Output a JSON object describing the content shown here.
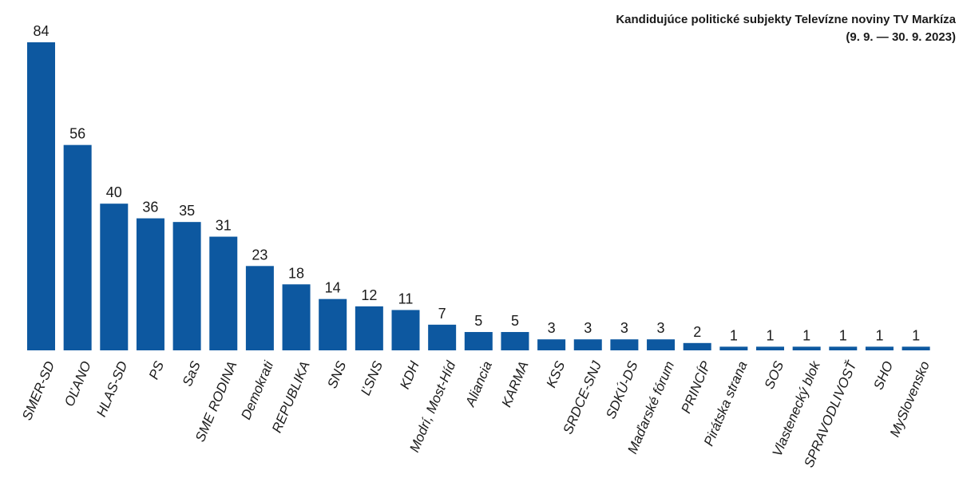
{
  "chart_data": {
    "type": "bar",
    "title": "Kandidujúce politické subjekty Televízne noviny TV Markíza",
    "subtitle": "(9. 9. — 30. 9. 2023)",
    "color": "#0d58a0",
    "categories": [
      "SMER-SD",
      "OĽANO",
      "HLAS-SD",
      "PS",
      "SaS",
      "SME RODINA",
      "Demokrati",
      "REPUBLIKA",
      "SNS",
      "ĽSNS",
      "KDH",
      "Modrí, Most-Híd",
      "Aliancia",
      "KARMA",
      "KSS",
      "SRDCE-SNJ",
      "SDKÚ-DS",
      "Maďarské fórum",
      "PRINCÍP",
      "Pirátska strana",
      "SOS",
      "Vlastenecký blok",
      "SPRAVODLIVOSŤ",
      "SHO",
      "MySlovensko"
    ],
    "values": [
      84,
      56,
      40,
      36,
      35,
      31,
      23,
      18,
      14,
      12,
      11,
      7,
      5,
      5,
      3,
      3,
      3,
      3,
      2,
      1,
      1,
      1,
      1,
      1,
      1
    ],
    "ylim": [
      0,
      84
    ]
  }
}
